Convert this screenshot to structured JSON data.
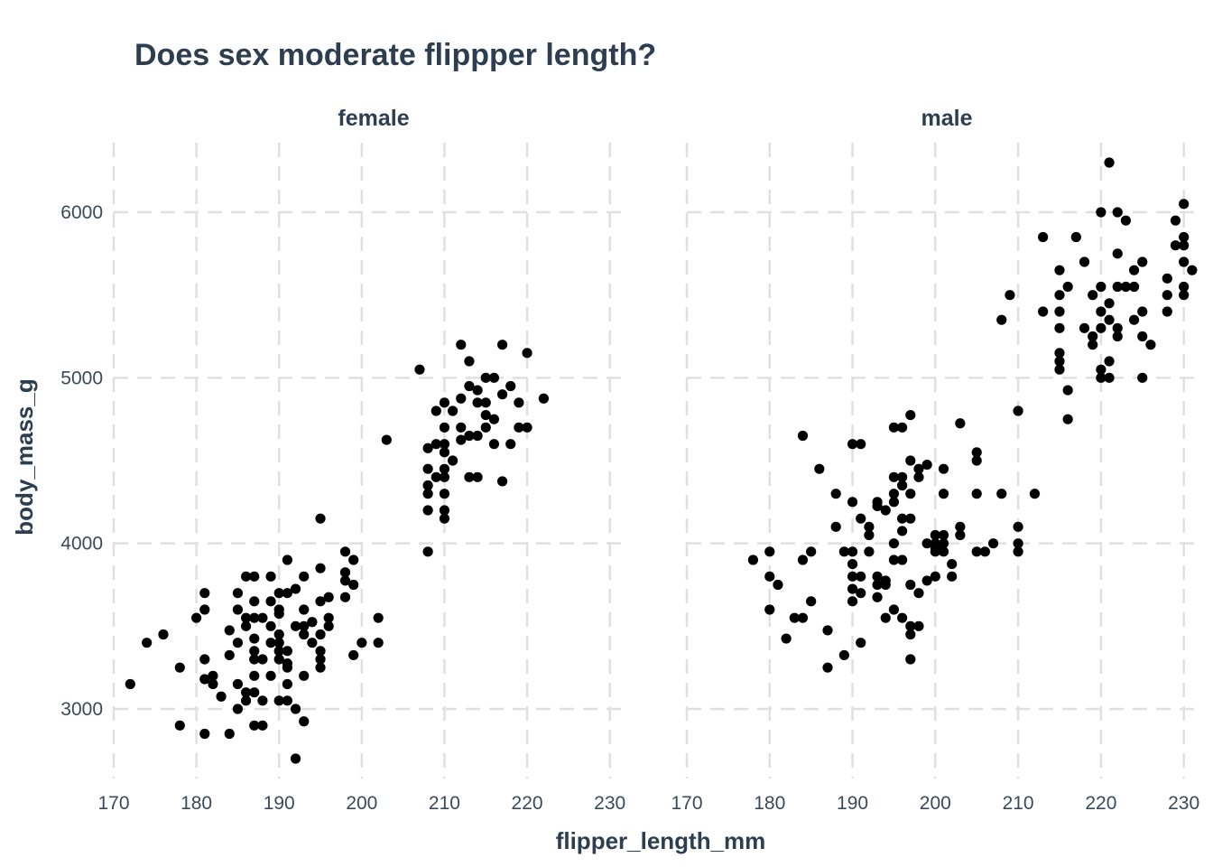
{
  "chart_data": {
    "type": "scatter",
    "title": "Does sex moderate flippper length?",
    "xlabel": "flipper_length_mm",
    "ylabel": "body_mass_g",
    "xlim": [
      170,
      232
    ],
    "ylim": [
      2580,
      6420
    ],
    "x_ticks": [
      170,
      180,
      190,
      200,
      210,
      220,
      230
    ],
    "y_ticks": [
      3000,
      4000,
      5000,
      6000
    ],
    "grid": true,
    "grid_style": "dashed",
    "legend": "none",
    "point_color": "#000000",
    "text_color": "#2c3e50",
    "panels": [
      {
        "label": "female",
        "points": [
          [
            172,
            3150
          ],
          [
            174,
            3400
          ],
          [
            176,
            3450
          ],
          [
            178,
            3250
          ],
          [
            178,
            2900
          ],
          [
            180,
            3550
          ],
          [
            181,
            3700
          ],
          [
            181,
            3600
          ],
          [
            181,
            3300
          ],
          [
            181,
            3180
          ],
          [
            181,
            2850
          ],
          [
            182,
            3200
          ],
          [
            182,
            3150
          ],
          [
            183,
            3075
          ],
          [
            184,
            3475
          ],
          [
            184,
            3325
          ],
          [
            184,
            2850
          ],
          [
            185,
            3700
          ],
          [
            185,
            3600
          ],
          [
            185,
            3400
          ],
          [
            185,
            3150
          ],
          [
            185,
            3000
          ],
          [
            186,
            3800
          ],
          [
            186,
            3500
          ],
          [
            186,
            3550
          ],
          [
            186,
            3100
          ],
          [
            186,
            3050
          ],
          [
            187,
            3800
          ],
          [
            187,
            3650
          ],
          [
            187,
            3550
          ],
          [
            187,
            3425
          ],
          [
            187,
            3350
          ],
          [
            187,
            3300
          ],
          [
            187,
            3200
          ],
          [
            187,
            3100
          ],
          [
            187,
            2900
          ],
          [
            188,
            3550
          ],
          [
            188,
            3300
          ],
          [
            188,
            3050
          ],
          [
            188,
            2900
          ],
          [
            189,
            3800
          ],
          [
            189,
            3650
          ],
          [
            189,
            3500
          ],
          [
            189,
            3400
          ],
          [
            189,
            3200
          ],
          [
            190,
            3700
          ],
          [
            190,
            3600
          ],
          [
            190,
            3575
          ],
          [
            190,
            3450
          ],
          [
            190,
            3400
          ],
          [
            190,
            3350
          ],
          [
            190,
            3300
          ],
          [
            190,
            3050
          ],
          [
            191,
            3900
          ],
          [
            191,
            3700
          ],
          [
            191,
            3350
          ],
          [
            191,
            3275
          ],
          [
            191,
            3250
          ],
          [
            191,
            3150
          ],
          [
            191,
            3050
          ],
          [
            192,
            3725
          ],
          [
            192,
            3500
          ],
          [
            192,
            3000
          ],
          [
            192,
            2700
          ],
          [
            193,
            3800
          ],
          [
            193,
            3600
          ],
          [
            193,
            3500
          ],
          [
            193,
            3450
          ],
          [
            193,
            3200
          ],
          [
            193,
            2925
          ],
          [
            194,
            3525
          ],
          [
            194,
            3400
          ],
          [
            195,
            4150
          ],
          [
            195,
            3850
          ],
          [
            195,
            3650
          ],
          [
            195,
            3450
          ],
          [
            195,
            3350
          ],
          [
            195,
            3300
          ],
          [
            195,
            3250
          ],
          [
            196,
            3675
          ],
          [
            196,
            3550
          ],
          [
            196,
            3500
          ],
          [
            198,
            3950
          ],
          [
            198,
            3825
          ],
          [
            198,
            3775
          ],
          [
            198,
            3675
          ],
          [
            199,
            3900
          ],
          [
            199,
            3750
          ],
          [
            199,
            3325
          ],
          [
            200,
            3400
          ],
          [
            202,
            3550
          ],
          [
            202,
            3400
          ],
          [
            203,
            4625
          ],
          [
            207,
            5050
          ],
          [
            208,
            4575
          ],
          [
            208,
            4450
          ],
          [
            208,
            4350
          ],
          [
            208,
            4300
          ],
          [
            208,
            4200
          ],
          [
            208,
            3950
          ],
          [
            209,
            4800
          ],
          [
            209,
            4600
          ],
          [
            209,
            4400
          ],
          [
            210,
            4850
          ],
          [
            210,
            4700
          ],
          [
            210,
            4600
          ],
          [
            210,
            4550
          ],
          [
            210,
            4450
          ],
          [
            210,
            4400
          ],
          [
            210,
            4300
          ],
          [
            210,
            4200
          ],
          [
            210,
            4150
          ],
          [
            211,
            4800
          ],
          [
            211,
            4500
          ],
          [
            212,
            5200
          ],
          [
            212,
            4875
          ],
          [
            212,
            4700
          ],
          [
            212,
            4625
          ],
          [
            213,
            5100
          ],
          [
            213,
            4950
          ],
          [
            213,
            4650
          ],
          [
            213,
            4400
          ],
          [
            214,
            4925
          ],
          [
            214,
            4850
          ],
          [
            214,
            4650
          ],
          [
            214,
            4400
          ],
          [
            215,
            5000
          ],
          [
            215,
            4850
          ],
          [
            215,
            4775
          ],
          [
            215,
            4700
          ],
          [
            216,
            5000
          ],
          [
            216,
            4750
          ],
          [
            216,
            4600
          ],
          [
            217,
            5200
          ],
          [
            217,
            4900
          ],
          [
            217,
            4375
          ],
          [
            218,
            4950
          ],
          [
            218,
            4600
          ],
          [
            219,
            4850
          ],
          [
            219,
            4700
          ],
          [
            220,
            5150
          ],
          [
            220,
            4700
          ],
          [
            222,
            4875
          ]
        ]
      },
      {
        "label": "male",
        "points": [
          [
            178,
            3900
          ],
          [
            180,
            3950
          ],
          [
            180,
            3800
          ],
          [
            180,
            3600
          ],
          [
            181,
            3750
          ],
          [
            182,
            3425
          ],
          [
            183,
            3550
          ],
          [
            184,
            4650
          ],
          [
            184,
            3900
          ],
          [
            184,
            3550
          ],
          [
            185,
            3950
          ],
          [
            185,
            3650
          ],
          [
            186,
            4450
          ],
          [
            187,
            3475
          ],
          [
            187,
            3250
          ],
          [
            188,
            4300
          ],
          [
            188,
            4100
          ],
          [
            189,
            3950
          ],
          [
            189,
            3325
          ],
          [
            190,
            4600
          ],
          [
            190,
            4250
          ],
          [
            190,
            3950
          ],
          [
            190,
            3875
          ],
          [
            190,
            3800
          ],
          [
            190,
            3725
          ],
          [
            190,
            3650
          ],
          [
            191,
            4600
          ],
          [
            191,
            4150
          ],
          [
            191,
            3700
          ],
          [
            191,
            3400
          ],
          [
            191,
            3800
          ],
          [
            192,
            4100
          ],
          [
            192,
            4050
          ],
          [
            192,
            3950
          ],
          [
            193,
            4250
          ],
          [
            193,
            4225
          ],
          [
            193,
            3800
          ],
          [
            193,
            3750
          ],
          [
            193,
            3675
          ],
          [
            194,
            4200
          ],
          [
            194,
            3775
          ],
          [
            194,
            3750
          ],
          [
            194,
            3550
          ],
          [
            195,
            4700
          ],
          [
            195,
            4400
          ],
          [
            195,
            4300
          ],
          [
            195,
            4250
          ],
          [
            195,
            4000
          ],
          [
            195,
            3900
          ],
          [
            195,
            3600
          ],
          [
            196,
            4700
          ],
          [
            196,
            4400
          ],
          [
            196,
            4350
          ],
          [
            196,
            4150
          ],
          [
            196,
            4075
          ],
          [
            196,
            3900
          ],
          [
            196,
            3550
          ],
          [
            197,
            4775
          ],
          [
            197,
            4500
          ],
          [
            197,
            4300
          ],
          [
            197,
            4150
          ],
          [
            197,
            3750
          ],
          [
            197,
            3500
          ],
          [
            197,
            3450
          ],
          [
            197,
            3300
          ],
          [
            198,
            4450
          ],
          [
            198,
            4400
          ],
          [
            198,
            3700
          ],
          [
            198,
            3500
          ],
          [
            199,
            4475
          ],
          [
            199,
            4000
          ],
          [
            199,
            3775
          ],
          [
            200,
            4050
          ],
          [
            200,
            4000
          ],
          [
            200,
            3975
          ],
          [
            200,
            3950
          ],
          [
            200,
            3800
          ],
          [
            201,
            4450
          ],
          [
            201,
            4300
          ],
          [
            201,
            4050
          ],
          [
            201,
            4000
          ],
          [
            201,
            3950
          ],
          [
            202,
            3875
          ],
          [
            202,
            3800
          ],
          [
            203,
            4725
          ],
          [
            203,
            4100
          ],
          [
            203,
            4050
          ],
          [
            205,
            4550
          ],
          [
            205,
            4500
          ],
          [
            205,
            4300
          ],
          [
            205,
            3950
          ],
          [
            206,
            3950
          ],
          [
            207,
            4000
          ],
          [
            208,
            5350
          ],
          [
            208,
            4300
          ],
          [
            209,
            5500
          ],
          [
            210,
            4800
          ],
          [
            210,
            4100
          ],
          [
            210,
            4000
          ],
          [
            210,
            3950
          ],
          [
            212,
            4300
          ],
          [
            213,
            5850
          ],
          [
            213,
            5400
          ],
          [
            215,
            5650
          ],
          [
            215,
            5500
          ],
          [
            215,
            5400
          ],
          [
            215,
            5300
          ],
          [
            215,
            5150
          ],
          [
            215,
            5100
          ],
          [
            215,
            5050
          ],
          [
            216,
            5550
          ],
          [
            216,
            4925
          ],
          [
            216,
            4750
          ],
          [
            217,
            5850
          ],
          [
            218,
            5700
          ],
          [
            218,
            5300
          ],
          [
            219,
            5500
          ],
          [
            219,
            5250
          ],
          [
            219,
            5200
          ],
          [
            220,
            6000
          ],
          [
            220,
            5550
          ],
          [
            220,
            5400
          ],
          [
            220,
            5300
          ],
          [
            220,
            5050
          ],
          [
            220,
            5000
          ],
          [
            221,
            6300
          ],
          [
            221,
            5450
          ],
          [
            221,
            5350
          ],
          [
            221,
            5100
          ],
          [
            221,
            5000
          ],
          [
            222,
            6000
          ],
          [
            222,
            5750
          ],
          [
            222,
            5550
          ],
          [
            222,
            5300
          ],
          [
            222,
            5250
          ],
          [
            223,
            5950
          ],
          [
            223,
            5550
          ],
          [
            224,
            5650
          ],
          [
            224,
            5550
          ],
          [
            224,
            5350
          ],
          [
            225,
            5700
          ],
          [
            225,
            5400
          ],
          [
            225,
            5250
          ],
          [
            225,
            5000
          ],
          [
            226,
            5200
          ],
          [
            228,
            5600
          ],
          [
            228,
            5500
          ],
          [
            228,
            5400
          ],
          [
            229,
            5950
          ],
          [
            229,
            5800
          ],
          [
            230,
            6050
          ],
          [
            230,
            5850
          ],
          [
            230,
            5800
          ],
          [
            230,
            5700
          ],
          [
            230,
            5550
          ],
          [
            230,
            5500
          ],
          [
            231,
            5650
          ]
        ]
      }
    ]
  }
}
